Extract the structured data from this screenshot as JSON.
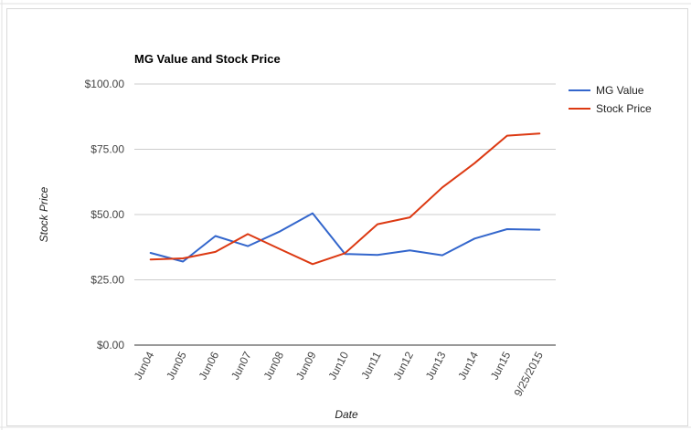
{
  "chart_data": {
    "type": "line",
    "title": "MG Value and Stock Price",
    "xlabel": "Date",
    "ylabel": "Stock Price",
    "categories": [
      "Jun04",
      "Jun05",
      "Jun06",
      "Jun07",
      "Jun08",
      "Jun09",
      "Jun10",
      "Jun11",
      "Jun12",
      "Jun13",
      "Jun14",
      "Jun15",
      "9/25/2015"
    ],
    "y_ticks": [
      "$0.00",
      "$25.00",
      "$50.00",
      "$75.00",
      "$100.00"
    ],
    "y_tick_values": [
      0,
      25,
      50,
      75,
      100
    ],
    "ylim": [
      0,
      100
    ],
    "grid": true,
    "legend_position": "right",
    "series": [
      {
        "name": "MG Value",
        "color": "#3366cc",
        "values": [
          35.3,
          32.0,
          41.8,
          37.9,
          43.6,
          50.5,
          34.9,
          34.5,
          36.3,
          34.4,
          40.8,
          44.4,
          44.2
        ]
      },
      {
        "name": "Stock Price",
        "color": "#dc3912",
        "values": [
          32.8,
          33.2,
          35.7,
          42.5,
          36.7,
          31.0,
          35.2,
          46.3,
          48.9,
          60.4,
          69.7,
          80.2,
          81.0
        ]
      }
    ]
  }
}
